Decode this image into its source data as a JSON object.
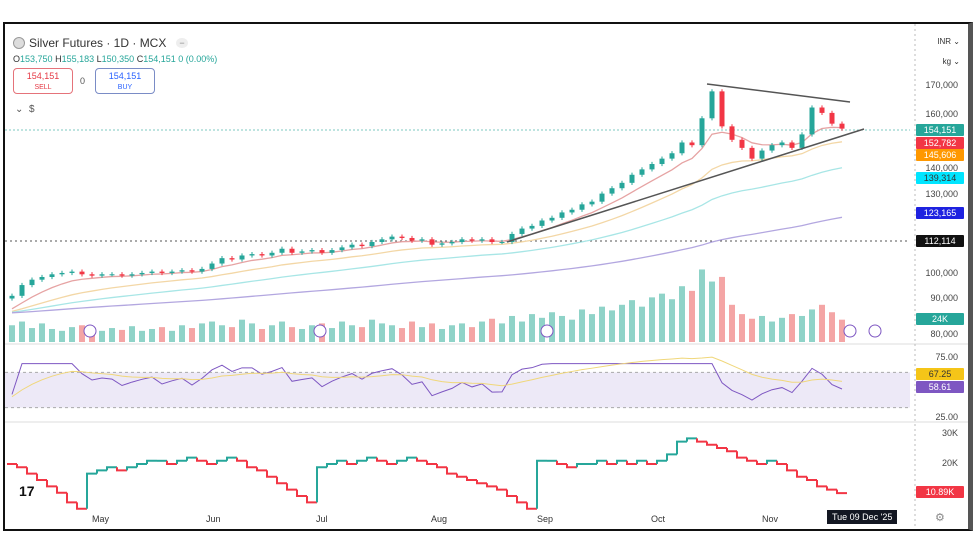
{
  "header": {
    "title": "Silver Futures · 1D · MCX",
    "open_label": "O",
    "open": "153,750",
    "high_label": "H",
    "high": "155,183",
    "low_label": "L",
    "low": "150,350",
    "close_label": "C",
    "close": "154,151",
    "change": "0 (0.00%)"
  },
  "trade": {
    "sell_price": "154,151",
    "sell_label": "SELL",
    "qty": "0",
    "buy_price": "154,151",
    "buy_label": "BUY"
  },
  "units": {
    "currency": "INR",
    "weight": "kg"
  },
  "price_axis": [
    "170,000",
    "160,000",
    "140,000",
    "130,000",
    "100,000",
    "90,000",
    "80,000"
  ],
  "price_tags": [
    {
      "value": "154,151",
      "color": "#26a69a"
    },
    {
      "value": "152,782",
      "color": "#f23645"
    },
    {
      "value": "145,606",
      "color": "#ff9800"
    },
    {
      "value": "139,314",
      "color": "#00e5ff"
    },
    {
      "value": "123,165",
      "color": "#1e22e0"
    },
    {
      "value": "112,114",
      "color": "#111111"
    }
  ],
  "volume_tag": "24K",
  "rsi_axis": [
    "75.00",
    "25.00"
  ],
  "rsi_tags": [
    {
      "value": "67.25",
      "color": "#f5c518"
    },
    {
      "value": "58.61",
      "color": "#7e57c2"
    }
  ],
  "lower_axis": [
    "30K",
    "20K"
  ],
  "lower_tag": "10.89K",
  "x_axis": [
    "May",
    "Jun",
    "Jul",
    "Aug",
    "Sep",
    "Oct",
    "Nov"
  ],
  "crosshair_date": "Tue 09 Dec '25",
  "chart_data": {
    "type": "candlestick",
    "price_unit": "INR/kg",
    "closes_k": [
      92,
      96,
      98,
      99,
      100,
      100.5,
      101,
      100,
      99.5,
      100,
      100,
      99.5,
      100,
      100.5,
      101,
      100.5,
      101,
      101.5,
      101,
      102,
      104,
      106,
      105.5,
      107,
      107.5,
      107,
      108,
      109.5,
      108,
      108.5,
      109,
      108,
      109,
      110,
      111,
      110.5,
      112,
      113,
      114,
      113.5,
      112.5,
      113,
      111,
      111.5,
      112,
      113,
      112.5,
      113,
      112,
      112,
      115,
      117,
      118,
      120,
      121,
      123,
      124,
      126,
      127,
      130,
      132,
      134,
      137,
      139,
      141,
      143,
      145,
      149,
      148,
      158,
      168,
      155,
      150,
      147,
      143,
      146,
      148,
      149,
      147,
      152,
      162,
      160,
      156,
      154.151
    ],
    "volume_k": [
      18,
      22,
      15,
      20,
      14,
      12,
      16,
      18,
      14,
      12,
      15,
      13,
      17,
      12,
      14,
      16,
      12,
      18,
      15,
      20,
      22,
      18,
      16,
      24,
      20,
      14,
      18,
      22,
      16,
      14,
      18,
      20,
      15,
      22,
      18,
      16,
      24,
      20,
      18,
      15,
      22,
      16,
      20,
      14,
      18,
      20,
      16,
      22,
      25,
      20,
      28,
      22,
      30,
      26,
      32,
      28,
      24,
      35,
      30,
      38,
      34,
      40,
      45,
      38,
      48,
      52,
      46,
      60,
      55,
      78,
      65,
      70,
      40,
      30,
      25,
      28,
      22,
      26,
      30,
      28,
      35,
      40,
      32,
      24
    ],
    "lower_k": [
      20,
      19,
      17,
      15,
      13,
      11,
      8,
      6,
      17,
      18,
      19,
      18,
      19,
      20,
      21,
      21,
      20,
      21,
      22,
      21,
      20,
      21,
      22,
      21,
      19,
      18,
      16,
      14,
      12,
      10,
      8,
      19,
      20,
      21,
      20,
      21,
      22,
      21,
      20,
      21,
      22,
      21,
      20,
      19,
      17,
      16,
      15,
      14,
      13,
      12,
      10,
      8,
      6,
      21,
      21,
      20,
      19,
      20,
      20,
      21,
      20,
      21,
      20,
      21,
      20,
      21,
      23,
      27,
      28,
      27,
      26,
      25,
      24,
      22,
      21,
      20,
      21,
      20,
      18,
      16,
      15,
      13,
      12,
      10.89
    ],
    "price_ylim": [
      85000,
      175000
    ],
    "rsi_ylim": [
      25,
      75
    ],
    "lower_ylim": [
      0,
      30
    ]
  }
}
